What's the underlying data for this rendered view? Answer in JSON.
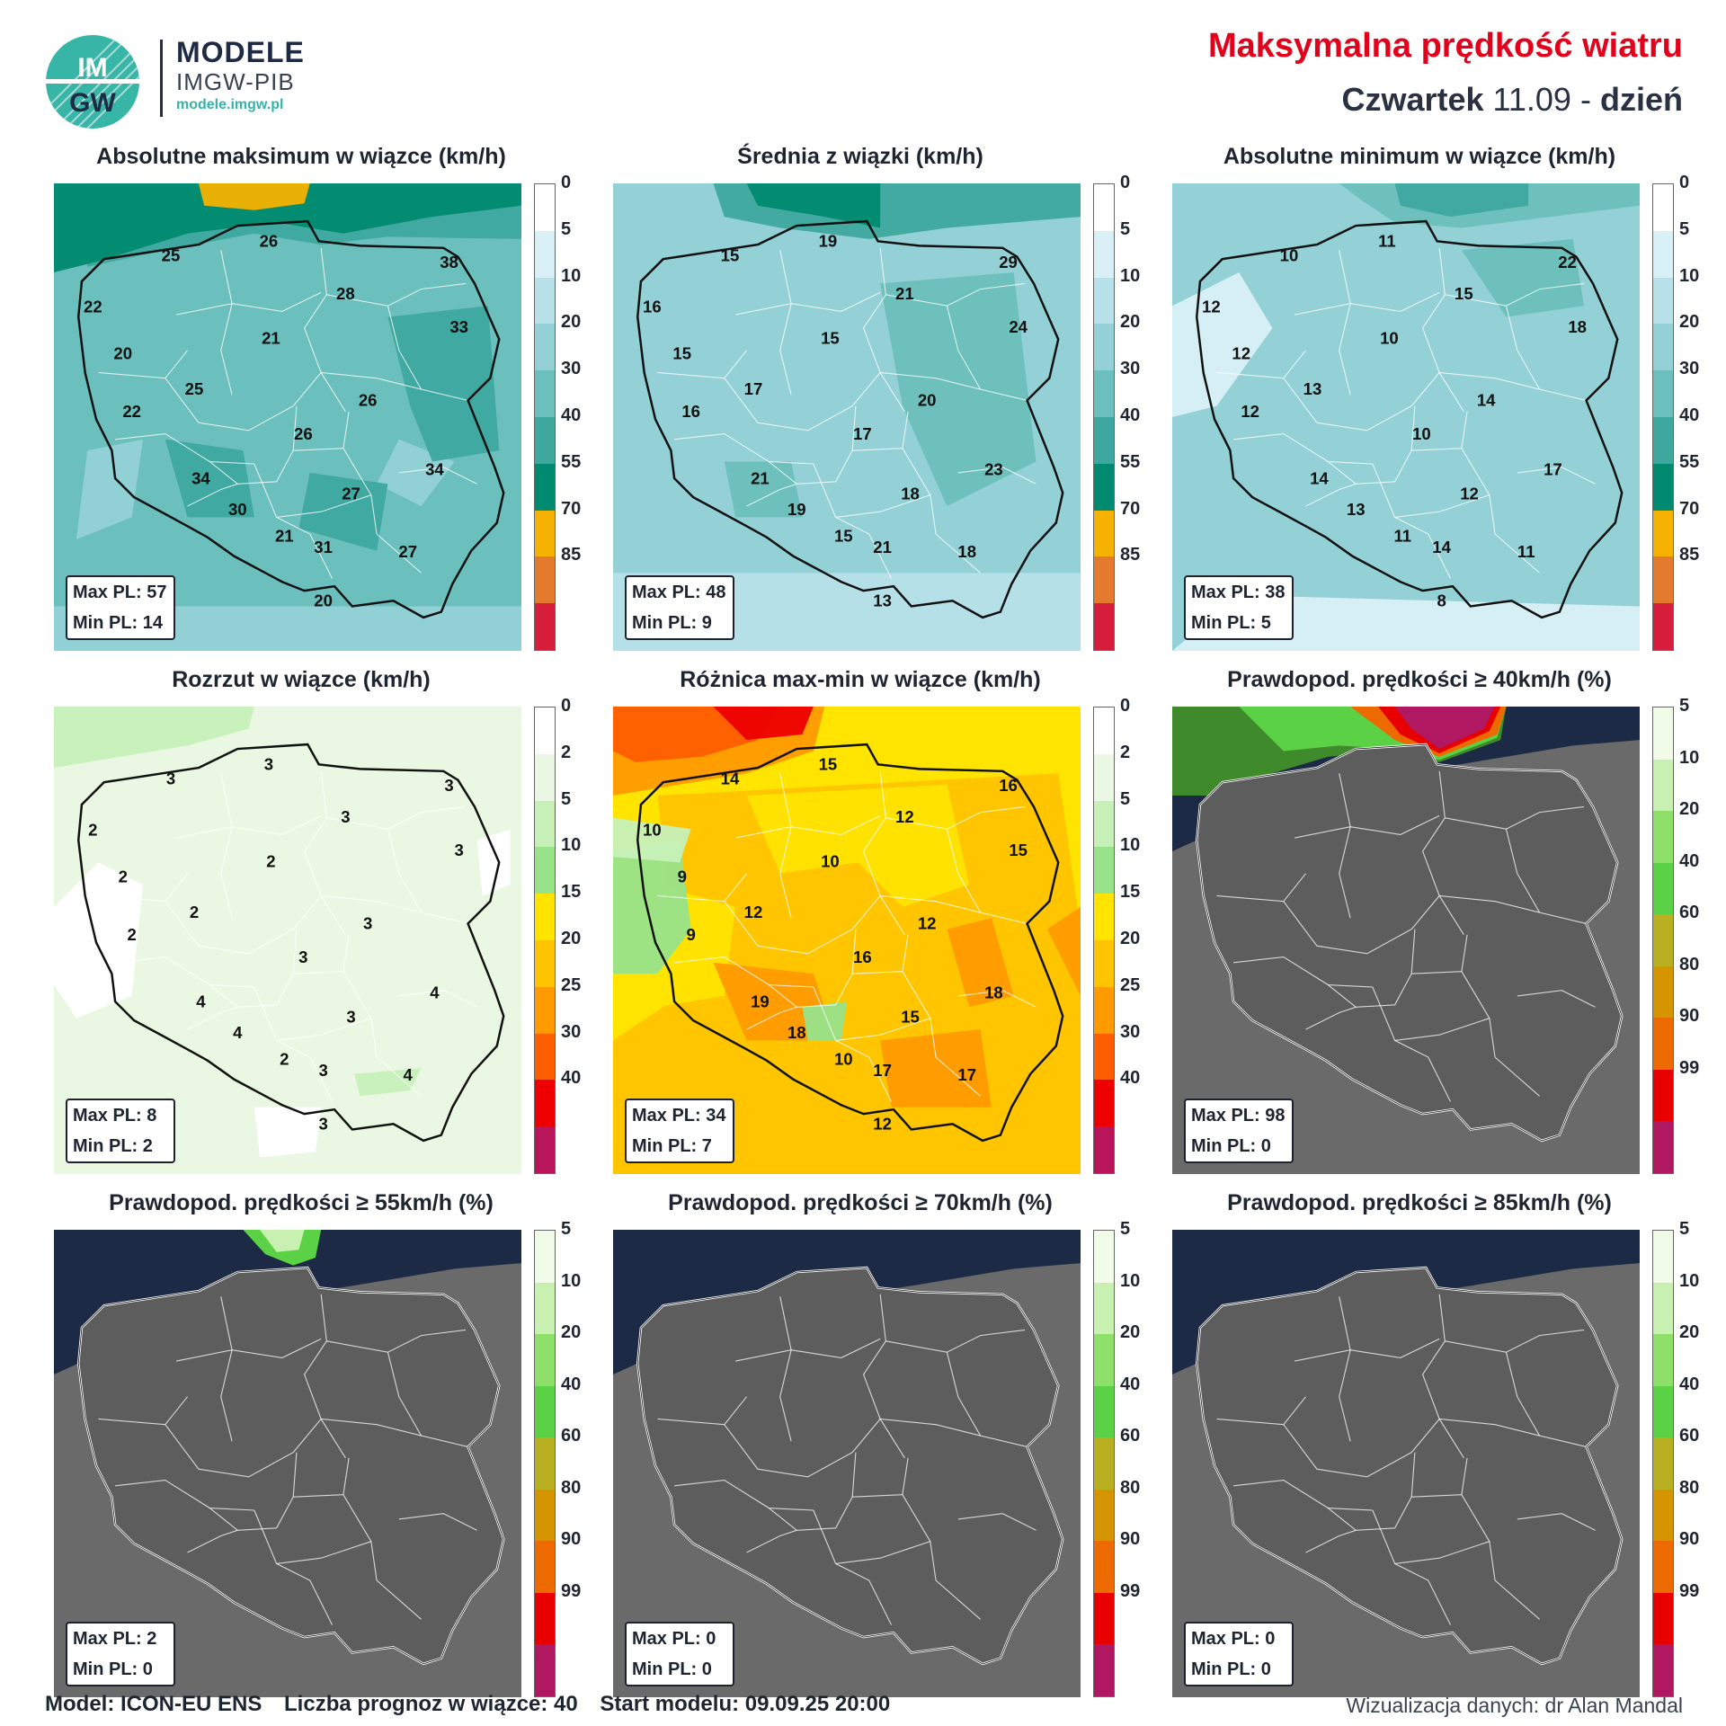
{
  "header": {
    "logo_text": "IMGW",
    "brand_line1": "MODELE",
    "brand_line2": "IMGW-PIB",
    "brand_url": "modele.imgw.pl",
    "title": "Maksymalna prędkość wiatru",
    "day_name": "Czwartek",
    "date": "11.09",
    "separator": "-",
    "period": "dzień"
  },
  "colors": {
    "title_red": "#e3001b",
    "navy": "#1f2a44",
    "teal": "#35b3a8"
  },
  "scales": {
    "speed": {
      "ticks": [
        "0",
        "5",
        "10",
        "20",
        "30",
        "40",
        "55",
        "70",
        "85"
      ],
      "colors": [
        "#ffffff",
        "#d9f0f6",
        "#b7e0e8",
        "#94d1d6",
        "#6bbfbc",
        "#3ea89f",
        "#008a70",
        "#f5b200",
        "#e47a2e",
        "#d61e3c"
      ]
    },
    "spread": {
      "ticks": [
        "0",
        "2",
        "5",
        "10",
        "15",
        "20",
        "25",
        "30",
        "40"
      ],
      "colors": [
        "#ffffff",
        "#eaf8e3",
        "#c7f0b8",
        "#98e38a",
        "#ffe400",
        "#ffc400",
        "#ff9a00",
        "#ff5e00",
        "#ee0000",
        "#b9155a"
      ]
    },
    "prob": {
      "ticks": [
        "5",
        "10",
        "20",
        "40",
        "60",
        "80",
        "90",
        "99"
      ],
      "colors": [
        "#f0fbe8",
        "#c8f0b0",
        "#8fe06a",
        "#5bd245",
        "#b8b020",
        "#d59500",
        "#ec6a00",
        "#e80000",
        "#b01862"
      ]
    }
  },
  "panels": [
    {
      "title": "Absolutne maksimum w wiązce (km/h)",
      "scale": "speed",
      "mode": "speed-high",
      "max_label": "Max PL: 57",
      "min_label": "Min PL: 14",
      "values": [
        "25",
        "26",
        "38",
        "22",
        "28",
        "20",
        "21",
        "33",
        "25",
        "22",
        "26",
        "26",
        "34",
        "34",
        "30",
        "27",
        "21",
        "31",
        "27",
        "20"
      ]
    },
    {
      "title": "Średnia z wiązki (km/h)",
      "scale": "speed",
      "mode": "speed-mid",
      "max_label": "Max PL: 48",
      "min_label": "Min PL: 9",
      "values": [
        "15",
        "19",
        "29",
        "16",
        "21",
        "15",
        "15",
        "24",
        "17",
        "16",
        "20",
        "17",
        "21",
        "23",
        "19",
        "18",
        "15",
        "21",
        "18",
        "13"
      ]
    },
    {
      "title": "Absolutne minimum w wiązce (km/h)",
      "scale": "speed",
      "mode": "speed-low",
      "max_label": "Max PL: 38",
      "min_label": "Min PL: 5",
      "values": [
        "10",
        "11",
        "22",
        "12",
        "15",
        "12",
        "10",
        "18",
        "13",
        "12",
        "14",
        "10",
        "14",
        "17",
        "13",
        "12",
        "11",
        "14",
        "11",
        "8"
      ]
    },
    {
      "title": "Rozrzut w wiązce (km/h)",
      "scale": "spread",
      "mode": "spread",
      "max_label": "Max PL: 8",
      "min_label": "Min PL: 2",
      "values": [
        "3",
        "3",
        "3",
        "2",
        "3",
        "2",
        "2",
        "3",
        "2",
        "2",
        "3",
        "3",
        "4",
        "4",
        "4",
        "3",
        "2",
        "3",
        "4",
        "3"
      ]
    },
    {
      "title": "Różnica max-min w wiązce (km/h)",
      "scale": "spread",
      "mode": "diff",
      "max_label": "Max PL: 34",
      "min_label": "Min PL: 7",
      "values": [
        "14",
        "15",
        "16",
        "10",
        "12",
        "9",
        "10",
        "15",
        "12",
        "9",
        "12",
        "16",
        "19",
        "18",
        "18",
        "15",
        "10",
        "17",
        "17",
        "12"
      ]
    },
    {
      "title": "Prawdopod. prędkości ≥ 40km/h (%)",
      "scale": "prob",
      "mode": "prob40",
      "max_label": "Max PL: 98",
      "min_label": "Min PL: 0",
      "values": []
    },
    {
      "title": "Prawdopod. prędkości ≥ 55km/h (%)",
      "scale": "prob",
      "mode": "prob55",
      "max_label": "Max PL: 2",
      "min_label": "Min PL: 0",
      "values": []
    },
    {
      "title": "Prawdopod. prędkości ≥ 70km/h (%)",
      "scale": "prob",
      "mode": "prob0",
      "max_label": "Max PL: 0",
      "min_label": "Min PL: 0",
      "values": []
    },
    {
      "title": "Prawdopod. prędkości ≥ 85km/h (%)",
      "scale": "prob",
      "mode": "prob0",
      "max_label": "Max PL: 0",
      "min_label": "Min PL: 0",
      "values": []
    }
  ],
  "footer": {
    "model": "Model: ICON-EU ENS",
    "members": "Liczba prognoz w wiązce: 40",
    "start": "Start modelu: 09.09.25  20:00",
    "credit": "Wizualizacja danych: dr Alan Mandal"
  }
}
